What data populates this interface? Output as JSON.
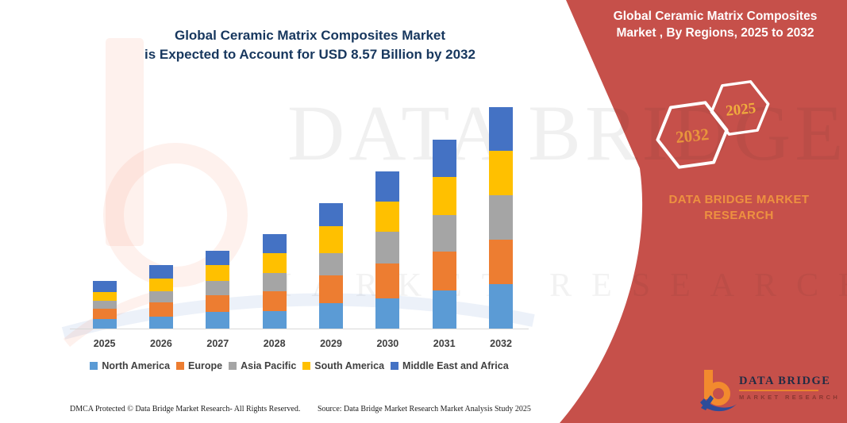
{
  "main_title": {
    "line1": "Global Ceramic Matrix Composites Market",
    "line2": "is Expected to Account for USD 8.57 Billion by 2032"
  },
  "band": {
    "color": "#C6504A",
    "title_line1": "Global Ceramic Matrix Composites",
    "title_line2": "Market , By Regions, 2025 to 2032",
    "hexagons": [
      {
        "label": "2032",
        "text_color": "#E8953C"
      },
      {
        "label": "2025",
        "text_color": "#F0AC3D"
      }
    ],
    "brand_line1": "DATA BRIDGE MARKET",
    "brand_line2": "RESEARCH"
  },
  "watermark": {
    "line1": "DATA BRIDGE",
    "line2": "MARKET RESEARCH"
  },
  "chart_data": {
    "type": "bar",
    "stacked": true,
    "title": "Global Ceramic Matrix Composites Market is Expected to Account for USD 8.57 Billion by 2032",
    "unit": "USD Billion",
    "categories": [
      "2025",
      "2026",
      "2027",
      "2028",
      "2029",
      "2030",
      "2031",
      "2032"
    ],
    "series": [
      {
        "name": "North America",
        "color": "#5B9BD5",
        "values": [
          0.37,
          0.46,
          0.65,
          0.68,
          0.98,
          1.17,
          1.47,
          1.72
        ]
      },
      {
        "name": "Europe",
        "color": "#ED7D31",
        "values": [
          0.4,
          0.55,
          0.65,
          0.77,
          1.08,
          1.35,
          1.51,
          1.72
        ]
      },
      {
        "name": "Asia Pacific",
        "color": "#A5A5A5",
        "values": [
          0.31,
          0.43,
          0.55,
          0.71,
          0.86,
          1.23,
          1.41,
          1.72
        ]
      },
      {
        "name": "South America",
        "color": "#FFC000",
        "values": [
          0.34,
          0.49,
          0.61,
          0.77,
          1.04,
          1.17,
          1.47,
          1.72
        ]
      },
      {
        "name": "Middle East and Africa",
        "color": "#4472C4",
        "values": [
          0.43,
          0.52,
          0.55,
          0.74,
          0.89,
          1.17,
          1.44,
          1.69
        ]
      }
    ],
    "totals_estimated": [
      1.85,
      2.45,
      3.01,
      3.67,
      4.85,
      6.09,
      7.3,
      8.57
    ],
    "ylim": [
      0,
      9
    ],
    "gridlines": false,
    "y_axis_labels_visible": false,
    "legend_position": "bottom"
  },
  "footer": {
    "left": "DMCA Protected © Data Bridge Market Research-  All Rights Reserved.",
    "source": "Source: Data Bridge Market Research  Market Analysis Study 2025"
  },
  "logo": {
    "name": "DATA BRIDGE",
    "subtext": "MARKET RESEARCH"
  }
}
